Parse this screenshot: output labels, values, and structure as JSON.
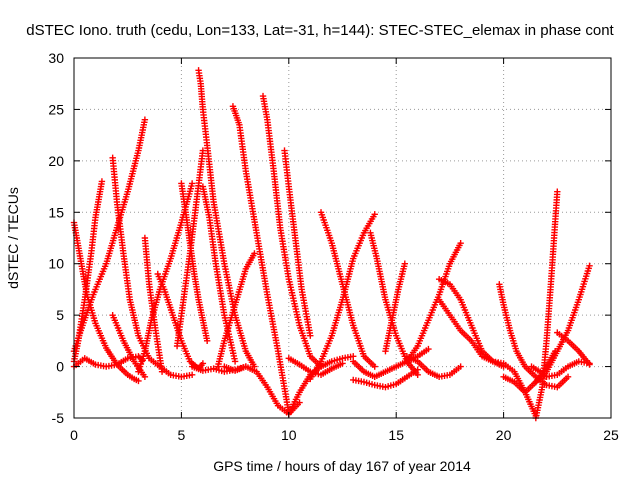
{
  "chart_data": {
    "type": "scatter",
    "title": "dSTEC Iono. truth (cedu, Lon=133, Lat=-31, h=144): STEC-STEC_elemax in phase cont",
    "xlabel": "GPS time / hours of day 167 of year 2014",
    "ylabel": "dSTEC  / TECUs",
    "xlim": [
      0,
      25
    ],
    "ylim": [
      -5,
      30
    ],
    "xticks": [
      0,
      5,
      10,
      15,
      20,
      25
    ],
    "yticks": [
      -5,
      0,
      5,
      10,
      15,
      20,
      25,
      30
    ],
    "grid": true,
    "marker": "plus",
    "color": "#ff0000",
    "series": [
      {
        "x": [
          0.0,
          0.3,
          0.6,
          1.0,
          1.5,
          2.0,
          2.5,
          2.8,
          3.0
        ],
        "y": [
          14.0,
          10.5,
          7.0,
          4.2,
          1.8,
          0.2,
          -0.8,
          -1.2,
          -1.4
        ]
      },
      {
        "x": [
          0.0,
          0.2,
          0.5,
          0.8,
          1.0,
          1.3
        ],
        "y": [
          0.5,
          2.5,
          6.5,
          11.0,
          14.5,
          18.0
        ]
      },
      {
        "x": [
          0.0,
          0.4,
          0.9,
          1.5,
          2.0,
          2.5,
          3.0,
          3.3
        ],
        "y": [
          1.5,
          4.0,
          7.0,
          10.0,
          13.5,
          17.0,
          21.0,
          24.0
        ]
      },
      {
        "x": [
          0.0,
          0.5,
          1.0,
          1.5,
          2.0,
          2.5,
          3.0,
          3.2
        ],
        "y": [
          0.0,
          0.8,
          0.2,
          0.0,
          0.2,
          0.8,
          1.0,
          0.6
        ]
      },
      {
        "x": [
          1.8,
          2.0,
          2.3,
          2.6,
          3.0,
          3.5,
          4.0,
          4.5,
          5.0,
          5.5
        ],
        "y": [
          20.3,
          16.0,
          11.0,
          6.5,
          3.0,
          0.8,
          0.0,
          -0.8,
          -1.0,
          -0.8
        ]
      },
      {
        "x": [
          1.8,
          2.3,
          2.8,
          3.3
        ],
        "y": [
          5.0,
          2.5,
          0.5,
          -1.0
        ]
      },
      {
        "x": [
          3.0,
          3.3,
          3.6,
          4.0,
          4.5,
          5.0,
          5.5
        ],
        "y": [
          -0.5,
          1.5,
          4.5,
          7.5,
          10.5,
          14.0,
          17.8
        ]
      },
      {
        "x": [
          3.3,
          3.5,
          3.8,
          4.1
        ],
        "y": [
          12.5,
          8.0,
          3.5,
          -0.5
        ]
      },
      {
        "x": [
          3.9,
          4.2,
          4.6,
          5.0,
          5.4,
          5.8,
          6.0
        ],
        "y": [
          9.0,
          7.5,
          5.0,
          2.5,
          0.5,
          -0.2,
          0.3
        ]
      },
      {
        "x": [
          5.0,
          5.2,
          5.4,
          5.6,
          5.8,
          6.0,
          6.2
        ],
        "y": [
          17.8,
          15.0,
          12.0,
          9.0,
          6.5,
          4.5,
          2.5
        ]
      },
      {
        "x": [
          4.8,
          5.1,
          5.4,
          5.7,
          6.0
        ],
        "y": [
          2.0,
          6.5,
          11.0,
          16.0,
          21.0
        ]
      },
      {
        "x": [
          5.8,
          5.9,
          6.0,
          6.2,
          6.5,
          7.0,
          7.5,
          8.0,
          8.4
        ],
        "y": [
          28.8,
          27.5,
          25.0,
          21.5,
          16.0,
          10.0,
          5.0,
          1.5,
          0.0
        ]
      },
      {
        "x": [
          6.0,
          6.3,
          6.6,
          7.0,
          7.5
        ],
        "y": [
          17.5,
          14.5,
          10.0,
          5.0,
          0.5
        ]
      },
      {
        "x": [
          5.5,
          6.0,
          6.5,
          7.0,
          7.5,
          8.0
        ],
        "y": [
          0.0,
          -0.4,
          -0.2,
          -0.5,
          -0.3,
          0.0
        ]
      },
      {
        "x": [
          7.4,
          7.7,
          8.0,
          8.5,
          9.0,
          9.5,
          10.0
        ],
        "y": [
          25.3,
          23.5,
          19.0,
          13.0,
          7.0,
          1.5,
          -4.5
        ]
      },
      {
        "x": [
          7.0,
          7.5,
          8.0,
          8.5,
          9.0,
          9.5,
          10.0,
          10.5
        ],
        "y": [
          0.0,
          -0.4,
          0.0,
          -0.5,
          -2.0,
          -3.8,
          -4.6,
          -3.5
        ]
      },
      {
        "x": [
          6.7,
          7.0,
          7.5,
          8.0,
          8.4
        ],
        "y": [
          0.0,
          2.5,
          6.0,
          9.5,
          11.0
        ]
      },
      {
        "x": [
          8.8,
          9.0,
          9.3,
          9.6,
          10.0,
          10.5,
          11.0,
          11.5
        ],
        "y": [
          26.3,
          24.0,
          19.0,
          13.5,
          8.5,
          4.0,
          1.0,
          0.0
        ]
      },
      {
        "x": [
          9.8,
          10.0,
          10.3,
          10.6,
          11.0
        ],
        "y": [
          21.0,
          17.5,
          12.5,
          7.5,
          3.0
        ]
      },
      {
        "x": [
          10.0,
          10.5,
          11.0,
          11.5,
          12.0,
          12.5,
          13.0
        ],
        "y": [
          -4.6,
          -2.5,
          -0.8,
          0.0,
          0.5,
          0.8,
          1.0
        ]
      },
      {
        "x": [
          11.5,
          12.0,
          12.5,
          13.0,
          13.5,
          14.0
        ],
        "y": [
          15.0,
          12.0,
          8.0,
          4.0,
          1.0,
          0.0
        ]
      },
      {
        "x": [
          11.0,
          11.5,
          12.0,
          12.5,
          13.0,
          13.5,
          14.0
        ],
        "y": [
          -1.2,
          0.5,
          3.0,
          6.5,
          10.5,
          13.0,
          14.8
        ]
      },
      {
        "x": [
          10.0,
          10.5,
          11.0,
          11.5,
          12.0,
          12.5
        ],
        "y": [
          0.8,
          0.2,
          -0.5,
          -0.8,
          -0.2,
          0.3
        ]
      },
      {
        "x": [
          13.8,
          14.1,
          14.5,
          15.0,
          15.5,
          16.0
        ],
        "y": [
          13.0,
          10.5,
          6.5,
          3.0,
          0.5,
          -0.8
        ]
      },
      {
        "x": [
          13.0,
          13.5,
          14.0,
          14.5,
          15.0,
          15.5,
          16.0,
          16.5
        ],
        "y": [
          0.5,
          -0.5,
          -1.0,
          -0.5,
          0.0,
          0.5,
          1.0,
          1.7
        ]
      },
      {
        "x": [
          13.0,
          13.5,
          14.0,
          14.5,
          15.0,
          15.5,
          16.0
        ],
        "y": [
          -1.3,
          -1.5,
          -1.8,
          -2.0,
          -1.7,
          -1.0,
          -0.3
        ]
      },
      {
        "x": [
          14.5,
          14.8,
          15.1,
          15.4
        ],
        "y": [
          1.5,
          4.5,
          7.5,
          10.0
        ]
      },
      {
        "x": [
          15.5,
          16.0,
          16.5,
          17.0,
          17.5,
          18.0
        ],
        "y": [
          0.5,
          2.0,
          4.5,
          7.0,
          10.0,
          12.0
        ]
      },
      {
        "x": [
          15.5,
          16.0,
          16.5,
          17.0,
          17.5,
          18.0
        ],
        "y": [
          1.0,
          0.5,
          -0.5,
          -1.0,
          -0.8,
          0.0
        ]
      },
      {
        "x": [
          17.0,
          17.5,
          18.0,
          18.5,
          19.0,
          19.5,
          20.0,
          20.5,
          21.0,
          21.5
        ],
        "y": [
          8.5,
          8.0,
          6.5,
          4.0,
          1.5,
          0.5,
          0.3,
          -0.5,
          -2.5,
          -4.8
        ]
      },
      {
        "x": [
          17.0,
          17.5,
          18.0,
          18.5,
          19.0,
          19.5,
          20.0
        ],
        "y": [
          6.5,
          5.0,
          3.5,
          2.5,
          1.0,
          0.5,
          0.0
        ]
      },
      {
        "x": [
          19.8,
          20.0,
          20.3,
          20.6,
          21.0,
          21.5,
          22.0,
          22.5,
          23.0
        ],
        "y": [
          8.0,
          6.0,
          3.5,
          1.5,
          0.0,
          -1.0,
          -1.8,
          -2.0,
          -1.0
        ]
      },
      {
        "x": [
          20.0,
          20.5,
          21.0,
          21.5,
          22.0,
          22.4
        ],
        "y": [
          -1.0,
          -1.5,
          -2.5,
          -1.5,
          0.0,
          1.5
        ]
      },
      {
        "x": [
          21.5,
          21.8,
          22.0,
          22.2,
          22.5
        ],
        "y": [
          -5.0,
          -2.0,
          2.5,
          8.0,
          17.0
        ]
      },
      {
        "x": [
          21.3,
          21.7,
          22.0,
          22.5,
          23.0,
          23.5,
          24.0
        ],
        "y": [
          0.0,
          -0.5,
          -1.0,
          -0.8,
          0.0,
          0.5,
          0.3
        ]
      },
      {
        "x": [
          22.5,
          23.0,
          23.5,
          24.0
        ],
        "y": [
          3.3,
          2.5,
          1.5,
          0.2
        ]
      },
      {
        "x": [
          21.5,
          22.0,
          22.5,
          23.0,
          23.5,
          24.0
        ],
        "y": [
          -1.5,
          -0.5,
          1.5,
          3.5,
          6.5,
          9.8
        ]
      }
    ]
  }
}
